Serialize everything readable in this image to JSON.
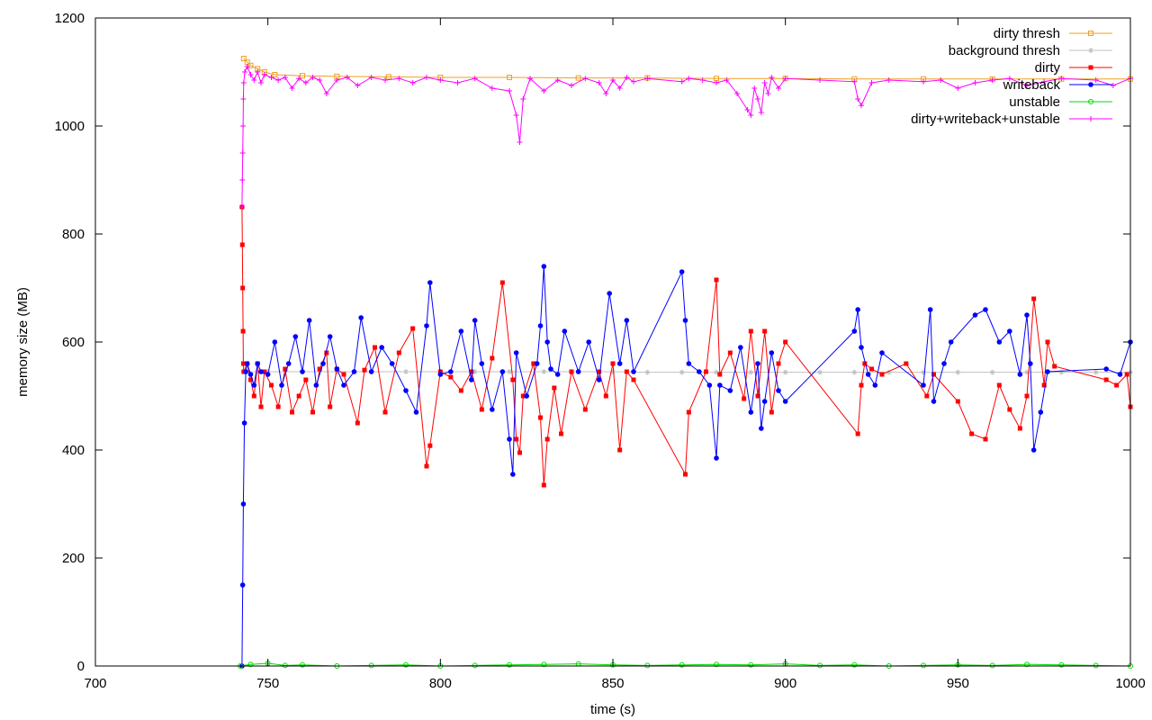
{
  "chart_data": {
    "type": "line",
    "xlabel": "time (s)",
    "ylabel": "memory size (MB)",
    "xlim": [
      700,
      1000
    ],
    "ylim": [
      0,
      1200
    ],
    "xticks": [
      700,
      750,
      800,
      850,
      900,
      950,
      1000
    ],
    "yticks": [
      0,
      200,
      400,
      600,
      800,
      1000,
      1200
    ],
    "grid": false,
    "legend_position": "top-right",
    "series": [
      {
        "name": "dirty thresh",
        "color": "#f0a020",
        "marker": "square-open",
        "x": [
          743,
          744,
          745,
          747,
          749,
          752,
          760,
          770,
          785,
          800,
          820,
          840,
          860,
          880,
          900,
          920,
          940,
          960,
          980,
          1000
        ],
        "y": [
          1125,
          1118,
          1112,
          1106,
          1100,
          1095,
          1093,
          1092,
          1091,
          1090,
          1090,
          1089,
          1089,
          1088,
          1088,
          1087,
          1087,
          1087,
          1087,
          1087
        ]
      },
      {
        "name": "background thresh",
        "color": "#c0c0c0",
        "marker": "star",
        "x": [
          743,
          750,
          760,
          770,
          780,
          790,
          800,
          810,
          820,
          830,
          840,
          850,
          860,
          870,
          880,
          890,
          900,
          910,
          920,
          930,
          940,
          950,
          960,
          970,
          980,
          990,
          1000
        ],
        "y": [
          545,
          545,
          545,
          545,
          545,
          545,
          545,
          545,
          545,
          545,
          545,
          545,
          544,
          544,
          544,
          544,
          544,
          544,
          544,
          544,
          544,
          544,
          544,
          544,
          544,
          544,
          544
        ]
      },
      {
        "name": "dirty",
        "color": "#ff0000",
        "marker": "square",
        "x": [
          742.5,
          742.6,
          742.7,
          742.8,
          742.9,
          743,
          744,
          745,
          746,
          747,
          748,
          749,
          751,
          753,
          755,
          757,
          759,
          761,
          763,
          765,
          767,
          768,
          770,
          772,
          776,
          778,
          781,
          784,
          788,
          792,
          796,
          797,
          800,
          803,
          806,
          809,
          812,
          815,
          818,
          821,
          822,
          823,
          824,
          827,
          829,
          830,
          831,
          833,
          835,
          838,
          842,
          846,
          848,
          850,
          852,
          854,
          856,
          871,
          872,
          877,
          880,
          881,
          884,
          888,
          890,
          892,
          894,
          896,
          898,
          900,
          921,
          922,
          923,
          925,
          928,
          935,
          941,
          943,
          950,
          954,
          958,
          962,
          965,
          968,
          970,
          972,
          975,
          976,
          978,
          993,
          996,
          999,
          1000
        ],
        "y": [
          850,
          780,
          700,
          620,
          560,
          545,
          560,
          530,
          500,
          560,
          480,
          545,
          520,
          480,
          550,
          470,
          500,
          530,
          470,
          550,
          580,
          480,
          550,
          540,
          450,
          548,
          590,
          470,
          580,
          625,
          370,
          408,
          545,
          535,
          510,
          545,
          475,
          570,
          710,
          530,
          420,
          395,
          500,
          560,
          460,
          335,
          420,
          515,
          430,
          545,
          475,
          545,
          500,
          560,
          400,
          545,
          530,
          355,
          470,
          545,
          715,
          540,
          580,
          495,
          620,
          500,
          620,
          470,
          560,
          600,
          430,
          520,
          560,
          550,
          540,
          560,
          500,
          540,
          490,
          430,
          420,
          520,
          475,
          440,
          500,
          680,
          520,
          600,
          555,
          530,
          520,
          540,
          480
        ]
      },
      {
        "name": "writeback",
        "color": "#0000ff",
        "marker": "circle",
        "x": [
          742.5,
          742.7,
          742.9,
          743.2,
          743.6,
          744,
          745,
          746,
          747,
          748,
          750,
          752,
          754,
          756,
          758,
          760,
          762,
          764,
          766,
          768,
          770,
          772,
          775,
          777,
          780,
          783,
          786,
          790,
          793,
          796,
          797,
          800,
          803,
          806,
          809,
          810,
          812,
          815,
          818,
          820,
          821,
          822,
          825,
          828,
          829,
          830,
          831,
          832,
          834,
          836,
          840,
          843,
          846,
          849,
          852,
          854,
          856,
          870,
          871,
          872,
          875,
          878,
          880,
          881,
          884,
          887,
          890,
          892,
          893,
          894,
          896,
          898,
          900,
          920,
          921,
          922,
          924,
          926,
          928,
          940,
          942,
          943,
          946,
          948,
          955,
          958,
          962,
          965,
          968,
          970,
          971,
          972,
          974,
          976,
          993,
          997,
          1000
        ],
        "y": [
          0,
          150,
          300,
          450,
          545,
          560,
          540,
          520,
          560,
          545,
          540,
          600,
          520,
          560,
          610,
          545,
          640,
          520,
          560,
          610,
          550,
          520,
          545,
          645,
          545,
          590,
          560,
          510,
          470,
          630,
          710,
          540,
          545,
          620,
          530,
          640,
          560,
          475,
          545,
          420,
          355,
          580,
          500,
          560,
          630,
          740,
          600,
          550,
          540,
          620,
          545,
          600,
          530,
          690,
          560,
          640,
          545,
          730,
          640,
          560,
          545,
          520,
          385,
          520,
          510,
          590,
          470,
          560,
          440,
          490,
          580,
          510,
          490,
          620,
          660,
          590,
          540,
          520,
          580,
          520,
          660,
          490,
          560,
          600,
          650,
          660,
          600,
          620,
          540,
          650,
          560,
          400,
          470,
          545,
          550,
          540,
          600
        ]
      },
      {
        "name": "unstable",
        "color": "#00dd00",
        "marker": "circle-open",
        "x": [
          742,
          745,
          750,
          755,
          760,
          770,
          780,
          790,
          800,
          810,
          820,
          830,
          840,
          850,
          860,
          870,
          880,
          890,
          900,
          910,
          920,
          930,
          940,
          950,
          960,
          970,
          980,
          990,
          1000
        ],
        "y": [
          0,
          3,
          5,
          1,
          2,
          0,
          1,
          2,
          0,
          1,
          2,
          3,
          4,
          2,
          1,
          2,
          3,
          2,
          4,
          1,
          2,
          0,
          1,
          2,
          1,
          3,
          2,
          1,
          0
        ]
      },
      {
        "name": "dirty+writeback+unstable",
        "color": "#ff00ff",
        "marker": "plus",
        "x": [
          742.5,
          742.6,
          742.7,
          742.8,
          742.9,
          743,
          743.3,
          744,
          745,
          746,
          747,
          748,
          749,
          751,
          753,
          755,
          757,
          759,
          761,
          763,
          765,
          767,
          770,
          773,
          776,
          780,
          784,
          788,
          792,
          796,
          800,
          805,
          810,
          815,
          820,
          822,
          823,
          824,
          826,
          830,
          834,
          838,
          842,
          846,
          848,
          850,
          852,
          854,
          856,
          860,
          870,
          872,
          876,
          880,
          883,
          886,
          889,
          890,
          891,
          892,
          893,
          894,
          895,
          896,
          898,
          900,
          910,
          920,
          921,
          922,
          925,
          930,
          940,
          945,
          950,
          955,
          960,
          965,
          970,
          975,
          980,
          990,
          995,
          1000
        ],
        "y": [
          850,
          900,
          950,
          1000,
          1050,
          1080,
          1100,
          1110,
          1095,
          1085,
          1100,
          1080,
          1095,
          1090,
          1085,
          1090,
          1070,
          1088,
          1080,
          1090,
          1085,
          1060,
          1085,
          1090,
          1075,
          1090,
          1085,
          1088,
          1080,
          1090,
          1085,
          1080,
          1088,
          1070,
          1065,
          1020,
          970,
          1050,
          1088,
          1065,
          1085,
          1075,
          1088,
          1080,
          1060,
          1085,
          1070,
          1090,
          1082,
          1088,
          1082,
          1088,
          1085,
          1080,
          1085,
          1060,
          1030,
          1020,
          1070,
          1050,
          1025,
          1080,
          1060,
          1090,
          1070,
          1088,
          1085,
          1082,
          1050,
          1038,
          1080,
          1085,
          1082,
          1085,
          1070,
          1080,
          1085,
          1088,
          1075,
          1082,
          1088,
          1085,
          1075,
          1088
        ]
      }
    ]
  }
}
